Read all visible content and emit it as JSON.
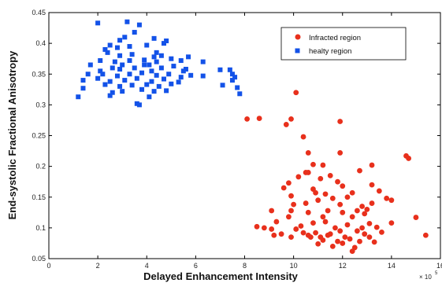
{
  "chart_data": {
    "type": "scatter",
    "title": "",
    "xlabel": "Delayed Enhancement Intensity",
    "ylabel": "End-systolic Fractional Anisotropy",
    "x_scale_label": "× 10",
    "x_scale_exponent": "5",
    "xlim": [
      0,
      16
    ],
    "ylim": [
      0.05,
      0.45
    ],
    "x_ticks": [
      "0",
      "2",
      "4",
      "6",
      "8",
      "10",
      "12",
      "14",
      "16"
    ],
    "y_ticks": [
      "0.05",
      "0.1",
      "0.15",
      "0.2",
      "0.25",
      "0.3",
      "0.35",
      "0.4",
      "0.45"
    ],
    "grid": false,
    "legend_position": "top-right",
    "series": [
      {
        "name": "Infracted region",
        "marker": "circle",
        "color": "#e8301c",
        "points": [
          [
            10.1,
            0.32
          ],
          [
            8.6,
            0.278
          ],
          [
            8.1,
            0.277
          ],
          [
            9.9,
            0.277
          ],
          [
            9.7,
            0.268
          ],
          [
            11.9,
            0.273
          ],
          [
            10.4,
            0.248
          ],
          [
            10.6,
            0.222
          ],
          [
            11.9,
            0.222
          ],
          [
            14.6,
            0.217
          ],
          [
            14.7,
            0.213
          ],
          [
            10.8,
            0.203
          ],
          [
            10.5,
            0.19
          ],
          [
            10.6,
            0.19
          ],
          [
            11.2,
            0.202
          ],
          [
            12.7,
            0.193
          ],
          [
            13.2,
            0.202
          ],
          [
            10.2,
            0.183
          ],
          [
            11.5,
            0.185
          ],
          [
            11.1,
            0.18
          ],
          [
            9.8,
            0.173
          ],
          [
            11.8,
            0.175
          ],
          [
            9.6,
            0.165
          ],
          [
            10.8,
            0.163
          ],
          [
            12.0,
            0.168
          ],
          [
            13.2,
            0.17
          ],
          [
            10.9,
            0.157
          ],
          [
            11.3,
            0.155
          ],
          [
            12.4,
            0.157
          ],
          [
            9.9,
            0.152
          ],
          [
            13.5,
            0.16
          ],
          [
            11.6,
            0.148
          ],
          [
            11.0,
            0.145
          ],
          [
            12.2,
            0.15
          ],
          [
            13.8,
            0.148
          ],
          [
            14.0,
            0.145
          ],
          [
            10.0,
            0.138
          ],
          [
            10.5,
            0.14
          ],
          [
            11.9,
            0.138
          ],
          [
            12.8,
            0.135
          ],
          [
            13.2,
            0.14
          ],
          [
            9.9,
            0.128
          ],
          [
            10.6,
            0.125
          ],
          [
            11.4,
            0.128
          ],
          [
            12.0,
            0.125
          ],
          [
            13.0,
            0.13
          ],
          [
            12.6,
            0.128
          ],
          [
            9.1,
            0.128
          ],
          [
            8.8,
            0.1
          ],
          [
            9.3,
            0.11
          ],
          [
            9.8,
            0.118
          ],
          [
            11.2,
            0.118
          ],
          [
            12.4,
            0.118
          ],
          [
            12.9,
            0.123
          ],
          [
            10.3,
            0.103
          ],
          [
            10.8,
            0.108
          ],
          [
            11.3,
            0.11
          ],
          [
            11.7,
            0.1
          ],
          [
            12.2,
            0.105
          ],
          [
            13.1,
            0.107
          ],
          [
            14.0,
            0.108
          ],
          [
            15.0,
            0.117
          ],
          [
            9.1,
            0.098
          ],
          [
            9.5,
            0.09
          ],
          [
            10.1,
            0.098
          ],
          [
            10.4,
            0.092
          ],
          [
            10.9,
            0.092
          ],
          [
            11.1,
            0.085
          ],
          [
            11.4,
            0.088
          ],
          [
            11.9,
            0.095
          ],
          [
            12.1,
            0.085
          ],
          [
            12.6,
            0.095
          ],
          [
            12.9,
            0.09
          ],
          [
            13.1,
            0.085
          ],
          [
            13.6,
            0.093
          ],
          [
            9.2,
            0.088
          ],
          [
            9.9,
            0.085
          ],
          [
            10.6,
            0.088
          ],
          [
            11.2,
            0.08
          ],
          [
            11.8,
            0.078
          ],
          [
            12.3,
            0.082
          ],
          [
            12.7,
            0.078
          ],
          [
            11.0,
            0.074
          ],
          [
            11.6,
            0.07
          ],
          [
            12.0,
            0.075
          ],
          [
            12.5,
            0.068
          ],
          [
            13.3,
            0.077
          ],
          [
            12.4,
            0.062
          ],
          [
            15.4,
            0.088
          ],
          [
            12.8,
            0.1
          ],
          [
            13.4,
            0.101
          ],
          [
            11.5,
            0.09
          ],
          [
            10.7,
            0.085
          ],
          [
            8.5,
            0.102
          ]
        ]
      },
      {
        "name": "healty region",
        "marker": "square",
        "color": "#1352e8",
        "points": [
          [
            2.0,
            0.433
          ],
          [
            3.2,
            0.435
          ],
          [
            3.7,
            0.43
          ],
          [
            2.9,
            0.405
          ],
          [
            3.5,
            0.418
          ],
          [
            2.5,
            0.397
          ],
          [
            3.1,
            0.41
          ],
          [
            4.0,
            0.397
          ],
          [
            4.3,
            0.408
          ],
          [
            4.7,
            0.4
          ],
          [
            4.8,
            0.404
          ],
          [
            2.3,
            0.39
          ],
          [
            2.8,
            0.393
          ],
          [
            3.3,
            0.395
          ],
          [
            4.4,
            0.385
          ],
          [
            2.4,
            0.385
          ],
          [
            2.9,
            0.38
          ],
          [
            3.4,
            0.382
          ],
          [
            4.3,
            0.378
          ],
          [
            4.6,
            0.38
          ],
          [
            5.7,
            0.378
          ],
          [
            2.1,
            0.372
          ],
          [
            2.7,
            0.37
          ],
          [
            3.3,
            0.372
          ],
          [
            3.9,
            0.373
          ],
          [
            4.4,
            0.37
          ],
          [
            5.0,
            0.375
          ],
          [
            5.4,
            0.372
          ],
          [
            6.3,
            0.37
          ],
          [
            1.7,
            0.365
          ],
          [
            2.6,
            0.36
          ],
          [
            2.9,
            0.358
          ],
          [
            3.5,
            0.36
          ],
          [
            4.1,
            0.365
          ],
          [
            4.6,
            0.36
          ],
          [
            5.1,
            0.363
          ],
          [
            5.6,
            0.358
          ],
          [
            7.0,
            0.357
          ],
          [
            7.4,
            0.357
          ],
          [
            1.6,
            0.35
          ],
          [
            2.2,
            0.35
          ],
          [
            2.8,
            0.347
          ],
          [
            3.3,
            0.35
          ],
          [
            3.8,
            0.352
          ],
          [
            4.4,
            0.348
          ],
          [
            4.9,
            0.35
          ],
          [
            5.4,
            0.345
          ],
          [
            5.8,
            0.348
          ],
          [
            6.3,
            0.347
          ],
          [
            7.5,
            0.35
          ],
          [
            1.4,
            0.34
          ],
          [
            2.0,
            0.343
          ],
          [
            2.5,
            0.338
          ],
          [
            3.1,
            0.34
          ],
          [
            3.6,
            0.343
          ],
          [
            4.2,
            0.338
          ],
          [
            4.7,
            0.342
          ],
          [
            5.3,
            0.337
          ],
          [
            7.5,
            0.34
          ],
          [
            7.6,
            0.345
          ],
          [
            2.3,
            0.333
          ],
          [
            2.9,
            0.33
          ],
          [
            3.4,
            0.332
          ],
          [
            4.0,
            0.333
          ],
          [
            4.5,
            0.33
          ],
          [
            5.0,
            0.334
          ],
          [
            7.1,
            0.332
          ],
          [
            7.7,
            0.328
          ],
          [
            1.4,
            0.327
          ],
          [
            2.6,
            0.32
          ],
          [
            3.0,
            0.322
          ],
          [
            3.8,
            0.325
          ],
          [
            4.3,
            0.322
          ],
          [
            4.8,
            0.323
          ],
          [
            1.2,
            0.313
          ],
          [
            2.5,
            0.315
          ],
          [
            3.7,
            0.3
          ],
          [
            3.6,
            0.302
          ],
          [
            4.1,
            0.313
          ],
          [
            7.8,
            0.318
          ],
          [
            2.1,
            0.355
          ],
          [
            3.9,
            0.365
          ],
          [
            4.2,
            0.355
          ],
          [
            3.0,
            0.365
          ],
          [
            5.5,
            0.355
          ]
        ]
      }
    ]
  }
}
